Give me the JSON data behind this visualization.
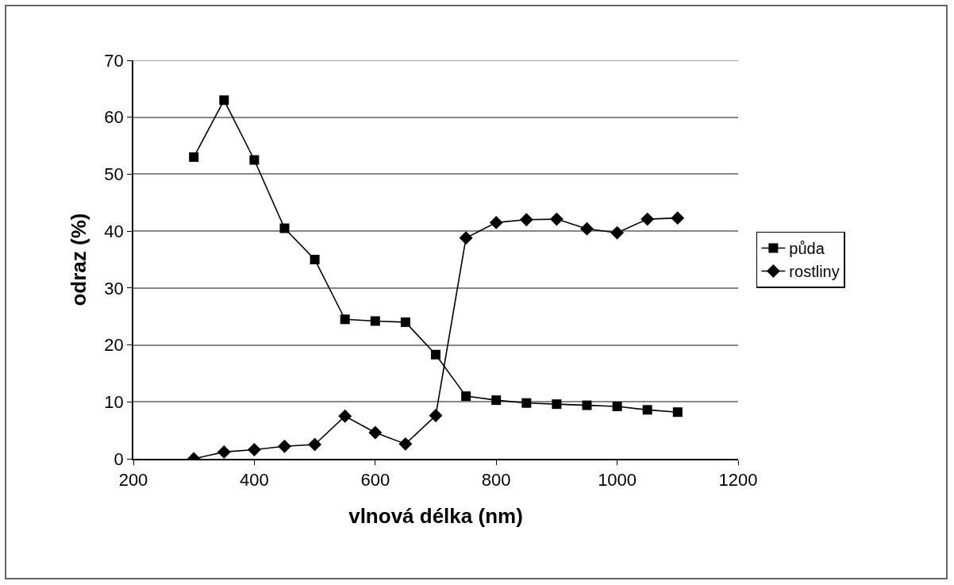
{
  "chart_data": {
    "type": "line",
    "xlabel": "vlnová délka (nm)",
    "ylabel": "odraz (%)",
    "x": [
      300,
      350,
      400,
      450,
      500,
      550,
      600,
      650,
      700,
      750,
      800,
      850,
      900,
      950,
      1000,
      1050,
      1100
    ],
    "series": [
      {
        "name": "půda",
        "color": "#000000",
        "marker": "square",
        "values": [
          53,
          63,
          52.5,
          40.5,
          35,
          24.5,
          24.2,
          24,
          18.3,
          11,
          10.3,
          9.8,
          9.6,
          9.4,
          9.2,
          8.6,
          8.2
        ]
      },
      {
        "name": "rostliny",
        "color": "#000000",
        "marker": "diamond",
        "values": [
          0,
          1.2,
          1.6,
          2.2,
          2.5,
          7.5,
          4.6,
          2.6,
          7.6,
          38.8,
          41.5,
          42,
          42.1,
          40.4,
          39.7,
          42.1,
          42.3
        ]
      }
    ],
    "xlim": [
      200,
      1200
    ],
    "xticks": [
      200,
      400,
      600,
      800,
      1000,
      1200
    ],
    "ylim": [
      0,
      70
    ],
    "yticks": [
      0,
      10,
      20,
      30,
      40,
      50,
      60,
      70
    ],
    "grid": "y",
    "legend": "right",
    "line_style": "solid"
  }
}
